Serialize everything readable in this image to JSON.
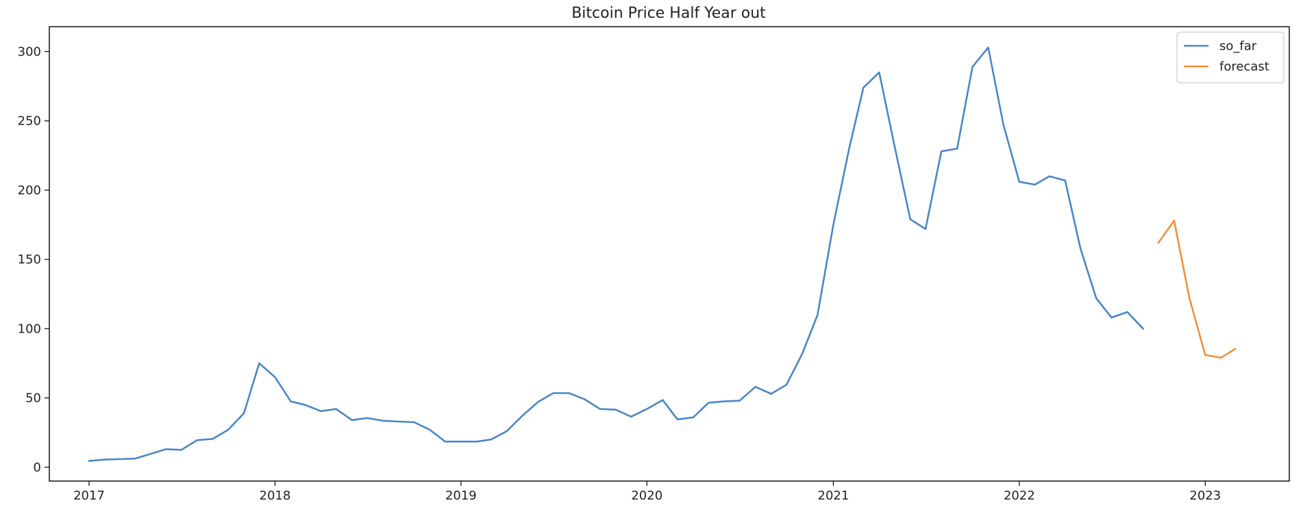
{
  "chart_data": {
    "type": "line",
    "title": "Bitcoin Price Half Year out",
    "xlabel": "",
    "ylabel": "",
    "x_axis": "date",
    "xlim": [
      "2016-10-15",
      "2023-06-15"
    ],
    "ylim": [
      -10,
      318
    ],
    "x_ticks": [
      "2017",
      "2018",
      "2019",
      "2020",
      "2021",
      "2022",
      "2023"
    ],
    "y_ticks": [
      0,
      50,
      100,
      150,
      200,
      250,
      300
    ],
    "grid": false,
    "legend": "top-right",
    "series": [
      {
        "name": "so_far",
        "color": "#4a86c4",
        "points": [
          [
            "2017-01-01",
            4.5
          ],
          [
            "2017-02-01",
            5.5
          ],
          [
            "2017-03-01",
            5.8
          ],
          [
            "2017-04-01",
            6.2
          ],
          [
            "2017-05-01",
            9.5
          ],
          [
            "2017-06-01",
            13
          ],
          [
            "2017-07-01",
            12.5
          ],
          [
            "2017-08-01",
            19.5
          ],
          [
            "2017-09-01",
            20.5
          ],
          [
            "2017-10-01",
            27
          ],
          [
            "2017-11-01",
            39
          ],
          [
            "2017-12-01",
            75
          ],
          [
            "2018-01-01",
            65
          ],
          [
            "2018-02-01",
            47.5
          ],
          [
            "2018-03-01",
            45
          ],
          [
            "2018-04-01",
            40.5
          ],
          [
            "2018-05-01",
            42
          ],
          [
            "2018-06-01",
            34
          ],
          [
            "2018-07-01",
            35.5
          ],
          [
            "2018-08-01",
            33.5
          ],
          [
            "2018-09-01",
            33
          ],
          [
            "2018-10-01",
            32.5
          ],
          [
            "2018-11-01",
            27
          ],
          [
            "2018-12-01",
            18.5
          ],
          [
            "2019-01-01",
            18.5
          ],
          [
            "2019-02-01",
            18.5
          ],
          [
            "2019-03-01",
            20
          ],
          [
            "2019-04-01",
            26
          ],
          [
            "2019-05-01",
            37
          ],
          [
            "2019-06-01",
            47
          ],
          [
            "2019-07-01",
            53.5
          ],
          [
            "2019-08-01",
            53.5
          ],
          [
            "2019-09-01",
            49
          ],
          [
            "2019-10-01",
            42
          ],
          [
            "2019-11-01",
            41.5
          ],
          [
            "2019-12-01",
            36.5
          ],
          [
            "2020-01-01",
            42
          ],
          [
            "2020-02-01",
            48.5
          ],
          [
            "2020-03-01",
            34.5
          ],
          [
            "2020-04-01",
            36
          ],
          [
            "2020-05-01",
            46.5
          ],
          [
            "2020-06-01",
            47.5
          ],
          [
            "2020-07-01",
            48
          ],
          [
            "2020-08-01",
            58
          ],
          [
            "2020-09-01",
            53
          ],
          [
            "2020-10-01",
            59.5
          ],
          [
            "2020-11-01",
            82
          ],
          [
            "2020-12-01",
            110
          ],
          [
            "2021-01-01",
            175
          ],
          [
            "2021-02-01",
            230
          ],
          [
            "2021-03-01",
            274
          ],
          [
            "2021-04-01",
            285
          ],
          [
            "2021-05-01",
            232
          ],
          [
            "2021-06-01",
            179
          ],
          [
            "2021-07-01",
            172
          ],
          [
            "2021-08-01",
            228
          ],
          [
            "2021-09-01",
            230
          ],
          [
            "2021-10-01",
            289
          ],
          [
            "2021-11-01",
            303
          ],
          [
            "2021-12-01",
            247
          ],
          [
            "2022-01-01",
            206
          ],
          [
            "2022-02-01",
            204
          ],
          [
            "2022-03-01",
            210
          ],
          [
            "2022-04-01",
            207
          ],
          [
            "2022-05-01",
            158
          ],
          [
            "2022-06-01",
            122
          ],
          [
            "2022-07-01",
            108
          ],
          [
            "2022-08-01",
            112
          ],
          [
            "2022-09-01",
            100
          ]
        ]
      },
      {
        "name": "forecast",
        "color": "#f28e3c",
        "points": [
          [
            "2022-10-01",
            162
          ],
          [
            "2022-11-01",
            178
          ],
          [
            "2022-12-01",
            122
          ],
          [
            "2023-01-01",
            81
          ],
          [
            "2023-02-01",
            79
          ],
          [
            "2023-03-01",
            85.5
          ]
        ]
      }
    ]
  }
}
